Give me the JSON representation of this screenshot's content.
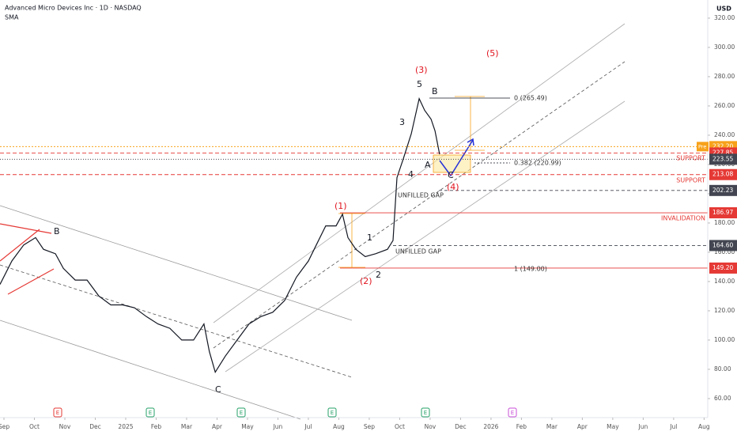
{
  "chart_data": {
    "type": "line",
    "title": "Advanced Micro Devices Inc · 1D · NASDAQ",
    "subtitle": "SMA",
    "currency": "USD",
    "series": [
      {
        "name": "AMD",
        "color": "#131722",
        "x": [
          -0.13,
          0.26,
          0.65,
          1.04,
          1.3,
          1.69,
          1.95,
          2.34,
          2.73,
          3.12,
          3.51,
          3.9,
          4.29,
          4.68,
          5.06,
          5.45,
          5.84,
          6.23,
          6.57,
          6.75,
          6.94,
          7.27,
          7.66,
          8.05,
          8.44,
          8.83,
          9.22,
          9.61,
          10.0,
          10.26,
          10.57,
          10.91,
          11.12,
          11.3,
          11.56,
          11.87,
          12.21,
          12.6,
          12.78,
          12.91,
          13.12,
          13.38,
          13.64,
          13.82,
          14.03,
          14.16,
          14.31
        ],
        "values": [
          138,
          154,
          165,
          170,
          162,
          159,
          149,
          141,
          141,
          130,
          124,
          124,
          122,
          116,
          111,
          108,
          100,
          100,
          111,
          92,
          78,
          89,
          100,
          111,
          116,
          119,
          127,
          143,
          154,
          165,
          178,
          178,
          186,
          170,
          162,
          157,
          159,
          162,
          168,
          211,
          224,
          241,
          265,
          257,
          251,
          243,
          227
        ]
      }
    ],
    "xlim": [
      -0.13,
      23.12
    ],
    "xticks": [
      {
        "value": 0,
        "label": "Sep"
      },
      {
        "value": 1,
        "label": "Oct"
      },
      {
        "value": 2,
        "label": "Nov"
      },
      {
        "value": 3,
        "label": "Dec"
      },
      {
        "value": 4,
        "label": "2025"
      },
      {
        "value": 5,
        "label": "Feb"
      },
      {
        "value": 6,
        "label": "Mar"
      },
      {
        "value": 7,
        "label": "Apr"
      },
      {
        "value": 8,
        "label": "May"
      },
      {
        "value": 9,
        "label": "Jun"
      },
      {
        "value": 10,
        "label": "Jul"
      },
      {
        "value": 11,
        "label": "Aug"
      },
      {
        "value": 12,
        "label": "Sep"
      },
      {
        "value": 13,
        "label": "Oct"
      },
      {
        "value": 14,
        "label": "Nov"
      },
      {
        "value": 15,
        "label": "Dec"
      },
      {
        "value": 16,
        "label": "2026"
      },
      {
        "value": 17,
        "label": "Feb"
      },
      {
        "value": 18,
        "label": "Mar"
      },
      {
        "value": 19,
        "label": "Apr"
      },
      {
        "value": 20,
        "label": "May"
      },
      {
        "value": 21,
        "label": "Jun"
      },
      {
        "value": 22,
        "label": "Jul"
      },
      {
        "value": 23,
        "label": "Aug"
      }
    ],
    "ylim": [
      47,
      332.4
    ],
    "yticks": [
      {
        "value": 60,
        "label": "60.00"
      },
      {
        "value": 80,
        "label": "80.00"
      },
      {
        "value": 100,
        "label": "100.00"
      },
      {
        "value": 120,
        "label": "120.00"
      },
      {
        "value": 140,
        "label": "140.00"
      },
      {
        "value": 160,
        "label": "160.00"
      },
      {
        "value": 180,
        "label": "180.00"
      },
      {
        "value": 200,
        "label": "200.00"
      },
      {
        "value": 220,
        "label": "220.00"
      },
      {
        "value": 240,
        "label": "240.00"
      },
      {
        "value": 260,
        "label": "260.00"
      },
      {
        "value": 280,
        "label": "280.00"
      },
      {
        "value": 300,
        "label": "300.00"
      },
      {
        "value": 320,
        "label": "320.00"
      }
    ],
    "price_levels": [
      {
        "value": 232.2,
        "label": "232.20",
        "color": "#f7a21b"
      },
      {
        "value": 227.85,
        "label": "227.85",
        "color": "#e53935"
      },
      {
        "value": 223.55,
        "label": "223.55",
        "color": "#434651"
      },
      {
        "value": 213.08,
        "label": "213.08",
        "color": "#e53935"
      },
      {
        "value": 202.23,
        "label": "202.23",
        "color": "#434651"
      },
      {
        "value": 186.97,
        "label": "186.97",
        "color": "#e53935"
      },
      {
        "value": 164.6,
        "label": "164.60",
        "color": "#434651"
      },
      {
        "value": 149.2,
        "label": "149.20",
        "color": "#e53935"
      }
    ],
    "pre_tag": "Pre",
    "events": [
      {
        "label": "E",
        "color": "#e53935"
      },
      {
        "label": "E",
        "color": "#26a269"
      },
      {
        "label": "E",
        "color": "#26a269"
      },
      {
        "label": "E",
        "color": "#26a269"
      },
      {
        "label": "E",
        "color": "#26a269"
      },
      {
        "label": "E",
        "color": "#c84fd8"
      }
    ],
    "annotations": {
      "w1": "(1)",
      "w2": "(2)",
      "w3": "(3)",
      "w4": "(4)",
      "w5": "(5)",
      "s1": "1",
      "s2": "2",
      "s3": "3",
      "s4": "4",
      "s5": "5",
      "a": "A",
      "b_top": "B",
      "c_small": "C",
      "b_left": "B",
      "c_low": "C",
      "gap1": "UNFILLED GAP",
      "gap2": "UNFILLED GAP",
      "fib0": "0 (265.49)",
      "fib382": "0.382 (220.99)",
      "fib1": "1 (149.00)",
      "support1": "SUPPORT",
      "support2": "SUPPORT",
      "invalidation": "INVALIDATION"
    }
  }
}
